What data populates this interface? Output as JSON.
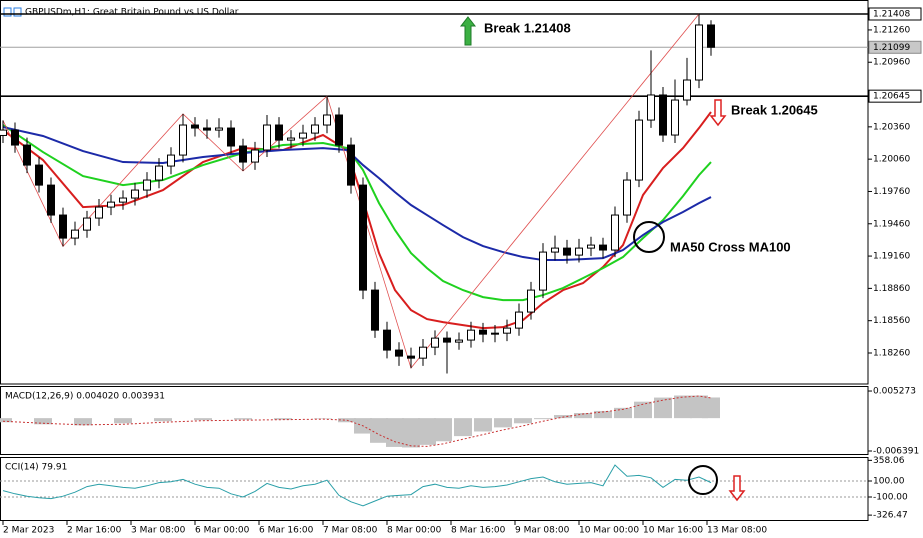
{
  "chart_data": [
    {
      "type": "candlestick",
      "title": "GBPUSDm,H1: Great Britain Pound vs US Dollar",
      "color": "#000000",
      "x": [
        0,
        3,
        6,
        9,
        12,
        15,
        18,
        21,
        24,
        27,
        30,
        33,
        36,
        39,
        42,
        45,
        48,
        51,
        54,
        57,
        60,
        63,
        66,
        69,
        72,
        75,
        78,
        81,
        84,
        87,
        90,
        93,
        96,
        99,
        102,
        105,
        108,
        111,
        114,
        117,
        120,
        123,
        126,
        129,
        132,
        135,
        138,
        141,
        144,
        147,
        150,
        153,
        156,
        159,
        162,
        165,
        168,
        171,
        174,
        177
      ],
      "open": [
        1.2028,
        1.2033,
        1.20191,
        1.20005,
        1.19819,
        1.19541,
        1.19327,
        1.19401,
        1.19513,
        1.19615,
        1.19661,
        1.19699,
        1.19773,
        1.19866,
        1.19996,
        1.20098,
        1.20377,
        1.20349,
        1.2033,
        1.20349,
        1.20182,
        1.20033,
        1.20145,
        1.20377,
        1.20237,
        1.20256,
        1.20302,
        1.20377,
        1.2047,
        1.20191,
        1.19819,
        1.18844,
        1.18472,
        1.18287,
        1.18231,
        1.18212,
        1.18314,
        1.18398,
        1.18361,
        1.1838,
        1.18472,
        1.18435,
        1.18444,
        1.18491,
        1.1864,
        1.18844,
        1.19197,
        1.19234,
        1.19169,
        1.19234,
        1.19262,
        1.19216,
        1.19541,
        1.19866,
        1.20423,
        1.20656,
        1.20284,
        1.20609,
        1.20795,
        1.21306
      ],
      "high": [
        1.2042,
        1.204,
        1.2026,
        1.2008,
        1.1989,
        1.1961,
        1.1948,
        1.1958,
        1.1969,
        1.1973,
        1.1977,
        1.1984,
        1.1994,
        1.2007,
        1.2017,
        1.2048,
        1.2045,
        1.2043,
        1.2044,
        1.2042,
        1.2025,
        1.2022,
        1.2047,
        1.2045,
        1.2033,
        1.2038,
        1.2045,
        1.20645,
        1.2054,
        1.2026,
        1.1989,
        1.1892,
        1.1855,
        1.1836,
        1.1831,
        1.1839,
        1.1847,
        1.1846,
        1.1845,
        1.1855,
        1.1854,
        1.1852,
        1.1857,
        1.1872,
        1.1892,
        1.1928,
        1.1935,
        1.1931,
        1.1932,
        1.1934,
        1.1933,
        1.1962,
        1.1994,
        1.2051,
        1.2107,
        1.2073,
        1.208,
        1.21,
        1.21408,
        1.2135
      ],
      "low": [
        1.2021,
        1.2012,
        1.1993,
        1.1975,
        1.1947,
        1.1925,
        1.1926,
        1.1933,
        1.1944,
        1.1954,
        1.1959,
        1.1963,
        1.197,
        1.1979,
        1.1992,
        1.2003,
        1.2027,
        1.2025,
        1.2026,
        1.2011,
        1.1995,
        1.1996,
        1.2008,
        1.2016,
        1.2016,
        1.2018,
        1.2023,
        1.203,
        1.2012,
        1.1974,
        1.1876,
        1.184,
        1.1821,
        1.1814,
        1.1812,
        1.1814,
        1.1824,
        1.1807,
        1.1829,
        1.1831,
        1.1836,
        1.1836,
        1.1837,
        1.1842,
        1.1857,
        1.1877,
        1.1912,
        1.1909,
        1.191,
        1.1916,
        1.1914,
        1.1915,
        1.1947,
        1.198,
        1.2035,
        1.2022,
        1.2021,
        1.2056,
        1.2072,
        1.2102
      ],
      "close": [
        1.2033,
        1.20191,
        1.20005,
        1.19819,
        1.19541,
        1.19327,
        1.19401,
        1.19513,
        1.19615,
        1.19661,
        1.19699,
        1.19773,
        1.19866,
        1.19996,
        1.20098,
        1.20377,
        1.20349,
        1.2033,
        1.20349,
        1.20182,
        1.20033,
        1.20145,
        1.20377,
        1.20237,
        1.20256,
        1.20302,
        1.20377,
        1.2047,
        1.20191,
        1.19819,
        1.18844,
        1.18472,
        1.18287,
        1.18231,
        1.18212,
        1.18314,
        1.18398,
        1.18361,
        1.1838,
        1.18472,
        1.18435,
        1.18444,
        1.18491,
        1.1864,
        1.18844,
        1.19197,
        1.19234,
        1.19169,
        1.19234,
        1.19262,
        1.19216,
        1.19541,
        1.19866,
        1.20423,
        1.20656,
        1.20284,
        1.20609,
        1.20795,
        1.21306,
        1.21099
      ],
      "overlays": [
        {
          "color": "#d81e1e",
          "x": [
            0,
            10,
            20,
            30,
            40,
            50,
            60,
            70,
            80,
            86,
            90,
            94,
            98,
            102,
            106,
            110,
            115,
            120,
            125,
            130,
            135,
            140,
            145,
            150,
            155,
            160,
            165,
            170,
            174,
            177
          ],
          "values": [
            1.2033,
            1.20052,
            1.19615,
            1.19634,
            1.19773,
            1.20033,
            1.20163,
            1.20145,
            1.20284,
            1.20145,
            1.1968,
            1.19188,
            1.18844,
            1.18658,
            1.18575,
            1.18547,
            1.18519,
            1.18491,
            1.185,
            1.18565,
            1.18723,
            1.18844,
            1.18909,
            1.19058,
            1.19262,
            1.19727,
            1.19977,
            1.20163,
            1.20349,
            1.20498
          ]
        },
        {
          "color": "#1fd11f",
          "x": [
            0,
            10,
            20,
            30,
            40,
            50,
            60,
            70,
            80,
            86,
            90,
            94,
            98,
            102,
            106,
            110,
            115,
            120,
            125,
            130,
            135,
            140,
            145,
            150,
            155,
            160,
            165,
            170,
            174,
            177
          ],
          "values": [
            1.20377,
            1.20126,
            1.19903,
            1.19819,
            1.19866,
            1.20005,
            1.20117,
            1.20191,
            1.2021,
            1.20163,
            1.19959,
            1.19652,
            1.19401,
            1.19188,
            1.19048,
            1.18928,
            1.18844,
            1.18779,
            1.18751,
            1.18751,
            1.18798,
            1.18863,
            1.18955,
            1.19048,
            1.19151,
            1.19327,
            1.19494,
            1.19717,
            1.19912,
            1.20033
          ]
        },
        {
          "color": "#1c2aa8",
          "x": [
            0,
            10,
            20,
            30,
            40,
            50,
            60,
            70,
            80,
            86,
            90,
            94,
            98,
            102,
            106,
            110,
            115,
            120,
            125,
            130,
            135,
            140,
            145,
            150,
            155,
            160,
            165,
            170,
            174,
            177
          ],
          "values": [
            1.20358,
            1.20275,
            1.20135,
            1.20033,
            1.20024,
            1.2008,
            1.20117,
            1.20145,
            1.20163,
            1.20145,
            1.20005,
            1.19884,
            1.19754,
            1.19634,
            1.19541,
            1.19448,
            1.19336,
            1.19253,
            1.19197,
            1.19151,
            1.19123,
            1.19123,
            1.19132,
            1.19141,
            1.19216,
            1.19355,
            1.19476,
            1.19569,
            1.19652,
            1.19708
          ]
        },
        {
          "color": "#e05050",
          "x": [
            0,
            15,
            45,
            60,
            81,
            102,
            174
          ],
          "values": [
            1.2042,
            1.1925,
            1.2048,
            1.1995,
            1.20645,
            1.1812,
            1.21408
          ]
        }
      ],
      "levels": [
        1.21408,
        1.20645
      ],
      "current_price": 1.21099,
      "annotations": [
        "Break 1.21408",
        "Break 1.20645",
        "MA50 Cross MA100"
      ],
      "xlim": [
        -0.75,
        216.25
      ],
      "ylim": [
        1.17972,
        1.21538
      ],
      "yticks": [
        {
          "value": 1.2126,
          "label": "1.21260"
        },
        {
          "value": 1.2096,
          "label": "1.20960"
        },
        {
          "value": 1.2036,
          "label": "1.20360"
        },
        {
          "value": 1.2006,
          "label": "1.20060"
        },
        {
          "value": 1.1976,
          "label": "1.19760"
        },
        {
          "value": 1.1946,
          "label": "1.19460"
        },
        {
          "value": 1.1916,
          "label": "1.19160"
        },
        {
          "value": 1.1886,
          "label": "1.18860"
        },
        {
          "value": 1.1856,
          "label": "1.18560"
        },
        {
          "value": 1.1826,
          "label": "1.18260"
        }
      ],
      "xticks": [
        {
          "value": 0,
          "label": "2 Mar 2023"
        },
        {
          "value": 16,
          "label": "2 Mar 16:00"
        },
        {
          "value": 32,
          "label": "3 Mar 08:00"
        },
        {
          "value": 48,
          "label": "6 Mar 00:00"
        },
        {
          "value": 64,
          "label": "6 Mar 16:00"
        },
        {
          "value": 80,
          "label": "7 Mar 08:00"
        },
        {
          "value": 96,
          "label": "8 Mar 00:00"
        },
        {
          "value": 112,
          "label": "8 Mar 16:00"
        },
        {
          "value": 128,
          "label": "9 Mar 08:00"
        },
        {
          "value": 144,
          "label": "10 Mar 00:00"
        },
        {
          "value": 160,
          "label": "10 Mar 16:00"
        },
        {
          "value": 176,
          "label": "13 Mar 08:00"
        }
      ]
    },
    {
      "type": "macd",
      "title": "MACD(12,26,9) 0.004020 0.003931",
      "x": [
        0,
        10,
        20,
        30,
        40,
        50,
        60,
        70,
        80,
        86,
        90,
        94,
        98,
        102,
        106,
        110,
        115,
        120,
        125,
        130,
        135,
        140,
        145,
        150,
        155,
        160,
        165,
        170,
        174,
        177
      ],
      "series": [
        {
          "color": "#c4c4c4",
          "values": [
            -0.0008,
            -0.0012,
            -0.0014,
            -0.001,
            -0.0006,
            -0.0004,
            -0.0003,
            -0.0003,
            -0.0001,
            -0.0008,
            -0.003,
            -0.0048,
            -0.0056,
            -0.0057,
            -0.0052,
            -0.0045,
            -0.0035,
            -0.0026,
            -0.0018,
            -0.001,
            -0.0002,
            0.0006,
            0.001,
            0.0014,
            0.002,
            0.0032,
            0.004,
            0.0044,
            0.0044,
            0.00402
          ]
        },
        {
          "color": "#c83232",
          "values": [
            -0.0006,
            -0.001,
            -0.0013,
            -0.0012,
            -0.0008,
            -0.0005,
            -0.0004,
            -0.0003,
            -0.0002,
            -0.0004,
            -0.0015,
            -0.0032,
            -0.0046,
            -0.0054,
            -0.0055,
            -0.005,
            -0.0041,
            -0.0032,
            -0.0023,
            -0.0015,
            -0.0006,
            0.0002,
            0.0008,
            0.0012,
            0.0017,
            0.0027,
            0.0035,
            0.0041,
            0.0043,
            0.003931
          ]
        }
      ],
      "xlim": [
        -0.75,
        216.25
      ],
      "ylim": [
        -0.00717,
        0.00625
      ],
      "yticks": [
        0.005273,
        -0.006391
      ]
    },
    {
      "type": "line",
      "title": "CCI(14) 79.91",
      "color": "#2a9fa8",
      "x": [
        0,
        3,
        6,
        9,
        12,
        15,
        18,
        21,
        24,
        27,
        30,
        33,
        36,
        39,
        42,
        45,
        48,
        51,
        54,
        57,
        60,
        63,
        66,
        69,
        72,
        75,
        78,
        81,
        84,
        87,
        90,
        93,
        96,
        99,
        102,
        105,
        108,
        111,
        114,
        117,
        120,
        123,
        126,
        129,
        132,
        135,
        138,
        141,
        144,
        147,
        150,
        153,
        156,
        159,
        162,
        165,
        168,
        171,
        174,
        177
      ],
      "values": [
        -20,
        -60,
        -90,
        -110,
        -120,
        -90,
        -40,
        30,
        60,
        40,
        20,
        10,
        40,
        80,
        90,
        120,
        60,
        20,
        10,
        -60,
        -100,
        -30,
        70,
        20,
        0,
        40,
        60,
        110,
        -80,
        -160,
        -210,
        -150,
        -90,
        -80,
        -70,
        30,
        60,
        20,
        10,
        40,
        20,
        30,
        50,
        90,
        130,
        150,
        90,
        60,
        70,
        80,
        40,
        300,
        160,
        170,
        140,
        20,
        120,
        110,
        150,
        79.91
      ],
      "levels": [
        100,
        -100
      ],
      "xlim": [
        -0.75,
        216.25
      ],
      "ylim": [
        -400,
        387.5
      ],
      "yticks": [
        358.06,
        {
          "value": 100,
          "label": "100.00"
        },
        {
          "value": -100,
          "label": "-100.00"
        },
        -326.47
      ]
    }
  ]
}
